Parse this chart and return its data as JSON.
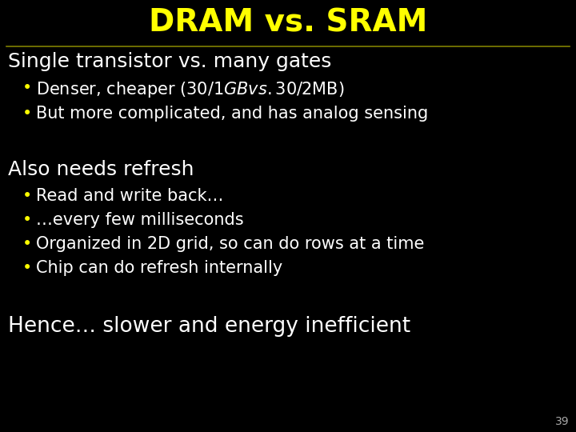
{
  "title": "DRAM vs. SRAM",
  "title_color": "#ffff00",
  "title_fontsize": 28,
  "background_color": "#000000",
  "line_color": "#808000",
  "section1_header": "Single transistor vs. many gates",
  "section1_bullets": [
    "Denser, cheaper ($30/1GB vs. $30/2MB)",
    "But more complicated, and has analog sensing"
  ],
  "section2_header": "Also needs refresh",
  "section2_bullets": [
    "Read and write back…",
    "…every few milliseconds",
    "Organized in 2D grid, so can do rows at a time",
    "Chip can do refresh internally"
  ],
  "section3_header": "Hence… slower and energy inefficient",
  "bullet_color": "#ffff00",
  "text_color": "#ffffff",
  "header_color": "#ffffff",
  "header_fontsize": 18,
  "bullet_fontsize": 15,
  "section3_fontsize": 19,
  "slide_number": "39",
  "slide_number_color": "#aaaaaa",
  "slide_number_fontsize": 10
}
